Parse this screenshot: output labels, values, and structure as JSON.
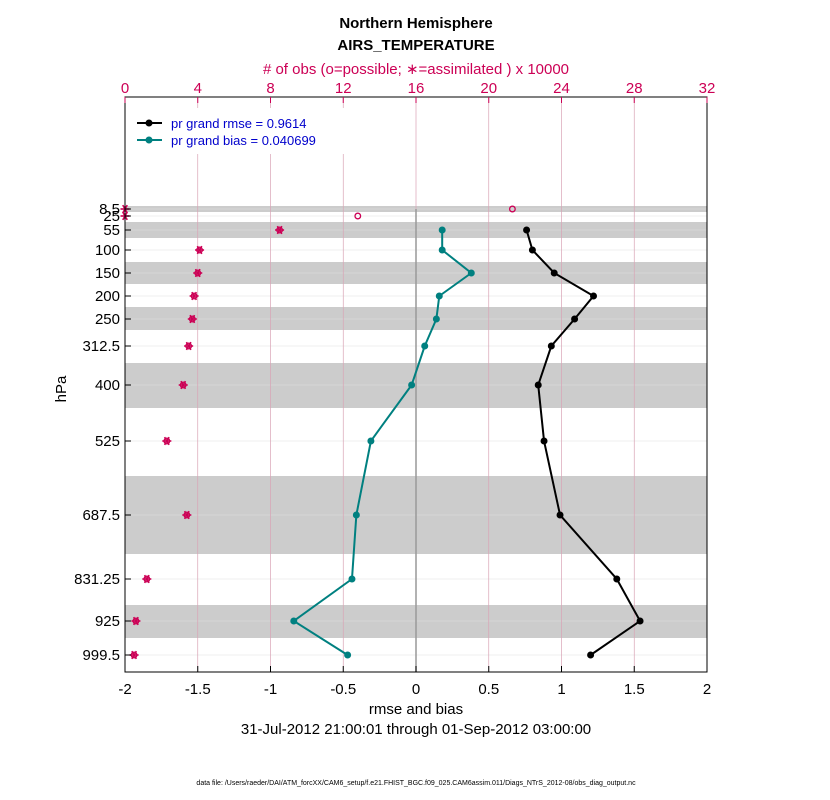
{
  "chart_data": {
    "type": "line",
    "title": "Northern Hemisphere",
    "subtitle": "AIRS_TEMPERATURE",
    "top_axis_label": "# of obs (o=possible; ∗=assimilated ) x 10000",
    "top_ticks": [
      "0",
      "4",
      "8",
      "12",
      "16",
      "20",
      "24",
      "28",
      "32"
    ],
    "top_range": [
      0,
      32
    ],
    "xlabel": "rmse and bias",
    "date_range": "31-Jul-2012 21:00:01 through 01-Sep-2012 03:00:00",
    "ylabel": "hPa",
    "xlim": [
      -2,
      2
    ],
    "x_ticks": [
      "-2",
      "-1.5",
      "-1",
      "-0.5",
      "0",
      "0.5",
      "1",
      "1.5",
      "2"
    ],
    "levels": [
      "8.5",
      "25",
      "55",
      "100",
      "150",
      "200",
      "250",
      "312.5",
      "400",
      "525",
      "687.5",
      "831.25",
      "925",
      "999.5"
    ],
    "series": [
      {
        "name": "pr grand rmse = 0.9614",
        "color": "#000000",
        "levels": [
          "55",
          "100",
          "150",
          "200",
          "250",
          "312.5",
          "400",
          "525",
          "687.5",
          "831.25",
          "925",
          "999.5"
        ],
        "values": [
          0.76,
          0.8,
          0.95,
          1.22,
          1.09,
          0.93,
          0.84,
          0.88,
          0.99,
          1.38,
          1.54,
          1.2
        ]
      },
      {
        "name": "pr grand bias = 0.040699",
        "color": "#008080",
        "levels": [
          "55",
          "100",
          "150",
          "200",
          "250",
          "312.5",
          "400",
          "525",
          "687.5",
          "831.25",
          "925",
          "999.5"
        ],
        "values": [
          0.18,
          0.18,
          0.38,
          0.16,
          0.14,
          0.06,
          -0.03,
          -0.31,
          -0.41,
          -0.44,
          -0.84,
          -0.47
        ]
      }
    ],
    "obs_possible": {
      "levels": [
        "8.5",
        "25",
        "55",
        "100",
        "150",
        "200",
        "250",
        "312.5",
        "400",
        "525",
        "687.5",
        "831.25",
        "925",
        "999.5"
      ],
      "values": [
        21.3,
        12.8,
        8.5,
        4.1,
        4.0,
        3.8,
        3.7,
        3.5,
        3.2,
        2.3,
        3.4,
        1.2,
        0.6,
        0.5
      ]
    },
    "obs_assimilated": {
      "levels": [
        "8.5",
        "25",
        "55",
        "100",
        "150",
        "200",
        "250",
        "312.5",
        "400",
        "525",
        "687.5",
        "831.25",
        "925",
        "999.5"
      ],
      "values": [
        0.0,
        0.0,
        8.5,
        4.1,
        4.0,
        3.8,
        3.7,
        3.5,
        3.2,
        2.3,
        3.4,
        1.2,
        0.6,
        0.5
      ]
    }
  },
  "footer": "data file: /Users/raeder/DAI/ATM_forcXX/CAM6_setup/f.e21.FHIST_BGC.f09_025.CAM6assim.011/Diags_NTrS_2012-08/obs_diag_output.nc",
  "colors": {
    "rmse": "#000000",
    "bias": "#008080",
    "obs": "#cc0055",
    "band": "#cccccc",
    "legend_text": "#0000cc"
  }
}
